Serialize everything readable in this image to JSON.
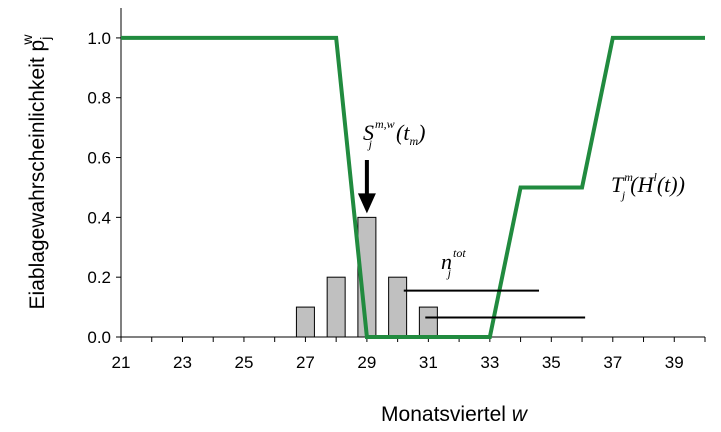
{
  "chart_data": {
    "type": "bar",
    "xlabel": "Monatsviertel",
    "xlabel_var": "w",
    "ylabel": "Eiablagewahrscheinlichkeit p",
    "ylabel_sub": "j",
    "ylabel_sup": "w",
    "xlim": [
      21,
      40
    ],
    "ylim": [
      0,
      1.1
    ],
    "x_ticks": [
      "21",
      "23",
      "25",
      "27",
      "29",
      "31",
      "33",
      "35",
      "37",
      "39"
    ],
    "y_ticks": [
      "0.0",
      "0.2",
      "0.4",
      "0.6",
      "0.8",
      "1.0"
    ],
    "grid": false,
    "colors": {
      "bar_fill": "#c0c0c0",
      "bar_stroke": "#000000",
      "line": "#218b3f",
      "axis": "#000000"
    },
    "bars": {
      "name": "S",
      "x": [
        27,
        28,
        29,
        30,
        31
      ],
      "values": [
        0.1,
        0.2,
        0.4,
        0.2,
        0.1
      ]
    },
    "line": {
      "name": "T",
      "x": [
        21,
        28,
        29,
        33,
        34,
        36,
        37,
        40
      ],
      "y": [
        1.0,
        1.0,
        0.0,
        0.0,
        0.5,
        0.5,
        1.0,
        1.0
      ]
    },
    "annotations": [
      {
        "id": "S",
        "base": "S",
        "sub": "j",
        "sup": "m,w",
        "arg": "(t",
        "arg_sub": "m",
        "arg_end": ")",
        "arrow_to": [
          29,
          0.4
        ]
      },
      {
        "id": "T",
        "base": "T",
        "sub": "j",
        "sup": "m",
        "arg": "(H",
        "arg_sup": "l",
        "arg_end": "(t))"
      },
      {
        "id": "n",
        "base": "n",
        "sub": "j",
        "sup": "tot",
        "lines": [
          {
            "x": [
              30.2,
              34.6
            ],
            "y": 0.155
          },
          {
            "x": [
              30.9,
              36.1
            ],
            "y": 0.065
          }
        ]
      }
    ]
  }
}
